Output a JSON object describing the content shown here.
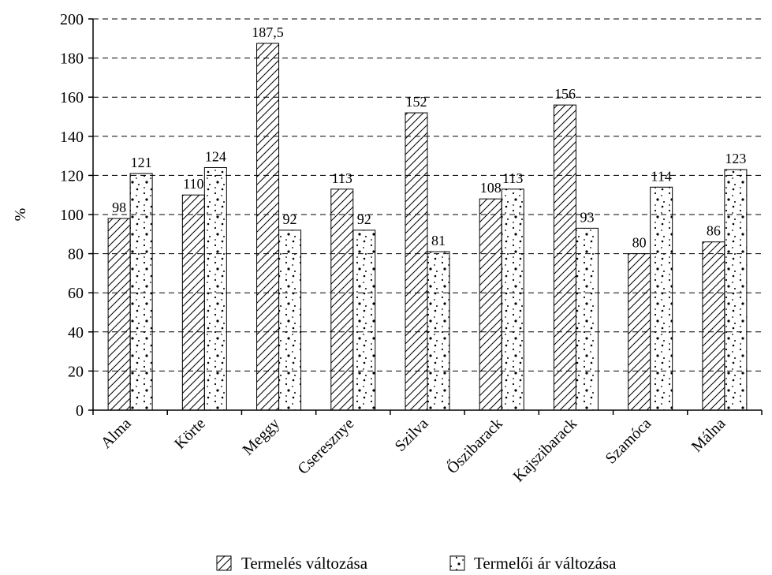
{
  "chart_data": {
    "type": "bar",
    "title": "",
    "xlabel": "",
    "ylabel": "%",
    "ylim": [
      0,
      200
    ],
    "yticks": [
      0,
      20,
      40,
      60,
      80,
      100,
      120,
      140,
      160,
      180,
      200
    ],
    "grid": "horizontal-dashed",
    "legend_position": "bottom",
    "categories": [
      "Alma",
      "Körte",
      "Meggy",
      "Cseresznye",
      "Szilva",
      "Őszibarack",
      "Kajszibarack",
      "Szamóca",
      "Málna"
    ],
    "series": [
      {
        "name": "Termelés változása",
        "pattern": "diagonal-hatch",
        "values": [
          98,
          110,
          187.5,
          113,
          152,
          108,
          156,
          80,
          86
        ],
        "labels": [
          "98",
          "110",
          "187,5",
          "113",
          "152",
          "108",
          "156",
          "80",
          "86"
        ]
      },
      {
        "name": "Termelői ár változása",
        "pattern": "dots",
        "values": [
          121,
          124,
          92,
          92,
          81,
          113,
          93,
          114,
          123
        ],
        "labels": [
          "121",
          "124",
          "92",
          "92",
          "81",
          "113",
          "93",
          "114",
          "123"
        ]
      }
    ],
    "colors": {
      "bar_fill": "#ffffff",
      "stroke": "#000000",
      "grid": "#000000"
    }
  }
}
